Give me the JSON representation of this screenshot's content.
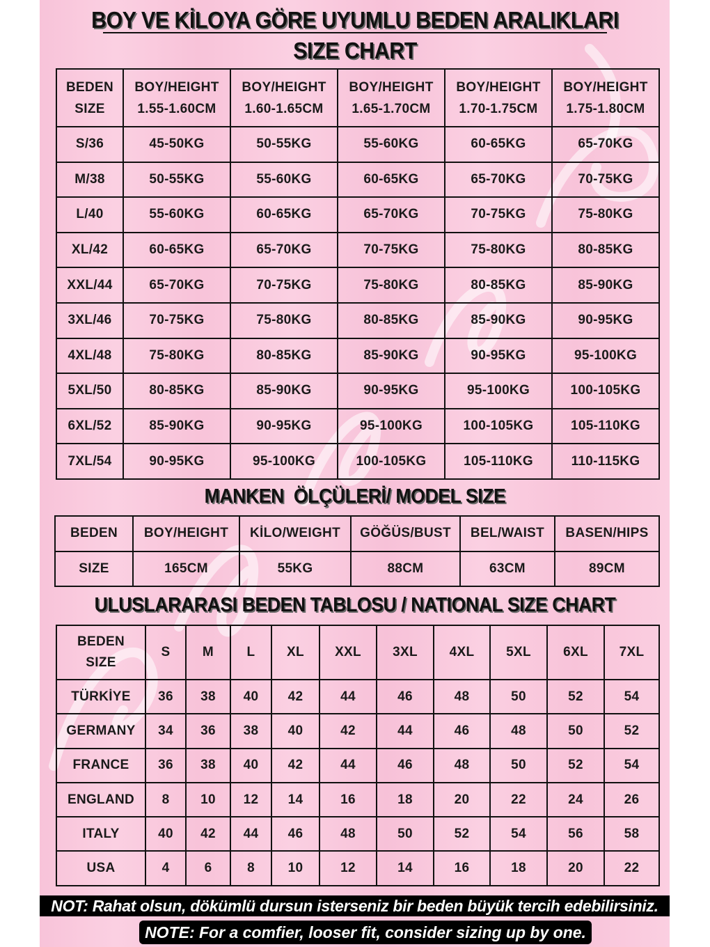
{
  "title": "BOY VE KİLOYA GÖRE UYUMLU BEDEN ARALIKLARI",
  "subtitle": "SIZE CHART",
  "size_chart": {
    "header": [
      [
        "BEDEN",
        "SIZE"
      ],
      [
        "BOY/HEIGHT",
        "1.55-1.60CM"
      ],
      [
        "BOY/HEIGHT",
        "1.60-1.65CM"
      ],
      [
        "BOY/HEIGHT",
        "1.65-1.70CM"
      ],
      [
        "BOY/HEIGHT",
        "1.70-1.75CM"
      ],
      [
        "BOY/HEIGHT",
        "1.75-1.80CM"
      ]
    ],
    "rows": [
      [
        "S/36",
        "45-50KG",
        "50-55KG",
        "55-60KG",
        "60-65KG",
        "65-70KG"
      ],
      [
        "M/38",
        "50-55KG",
        "55-60KG",
        "60-65KG",
        "65-70KG",
        "70-75KG"
      ],
      [
        "L/40",
        "55-60KG",
        "60-65KG",
        "65-70KG",
        "70-75KG",
        "75-80KG"
      ],
      [
        "XL/42",
        "60-65KG",
        "65-70KG",
        "70-75KG",
        "75-80KG",
        "80-85KG"
      ],
      [
        "XXL/44",
        "65-70KG",
        "70-75KG",
        "75-80KG",
        "80-85KG",
        "85-90KG"
      ],
      [
        "3XL/46",
        "70-75KG",
        "75-80KG",
        "80-85KG",
        "85-90KG",
        "90-95KG"
      ],
      [
        "4XL/48",
        "75-80KG",
        "80-85KG",
        "85-90KG",
        "90-95KG",
        "95-100KG"
      ],
      [
        "5XL/50",
        "80-85KG",
        "85-90KG",
        "90-95KG",
        "95-100KG",
        "100-105KG"
      ],
      [
        "6XL/52",
        "85-90KG",
        "90-95KG",
        "95-100KG",
        "100-105KG",
        "105-110KG"
      ],
      [
        "7XL/54",
        "90-95KG",
        "95-100KG",
        "100-105KG",
        "105-110KG",
        "110-115KG"
      ]
    ]
  },
  "model_title": "MANKEN  ÖLÇÜLERİ/ MODEL SIZE",
  "model": {
    "header": [
      "BEDEN",
      "BOY/HEIGHT",
      "KİLO/WEIGHT",
      "GÖĞÜS/BUST",
      "BEL/WAIST",
      "BASEN/HIPS"
    ],
    "values": [
      "SIZE",
      "165CM",
      "55KG",
      "88CM",
      "63CM",
      "89CM"
    ]
  },
  "national_title": "ULUSLARARASI BEDEN TABLOSU / NATIONAL SIZE CHART",
  "national": {
    "header_label": [
      "BEDEN",
      "SIZE"
    ],
    "sizes": [
      "S",
      "M",
      "L",
      "XL",
      "XXL",
      "3XL",
      "4XL",
      "5XL",
      "6XL",
      "7XL"
    ],
    "rows": [
      [
        "TÜRKİYE",
        "36",
        "38",
        "40",
        "42",
        "44",
        "46",
        "48",
        "50",
        "52",
        "54"
      ],
      [
        "GERMANY",
        "34",
        "36",
        "38",
        "40",
        "42",
        "44",
        "46",
        "48",
        "50",
        "52"
      ],
      [
        "FRANCE",
        "36",
        "38",
        "40",
        "42",
        "44",
        "46",
        "48",
        "50",
        "52",
        "54"
      ],
      [
        "ENGLAND",
        "8",
        "10",
        "12",
        "14",
        "16",
        "18",
        "20",
        "22",
        "24",
        "26"
      ],
      [
        "ITALY",
        "40",
        "42",
        "44",
        "46",
        "48",
        "50",
        "52",
        "54",
        "56",
        "58"
      ],
      [
        "USA",
        "4",
        "6",
        "8",
        "10",
        "12",
        "14",
        "16",
        "18",
        "20",
        "22"
      ]
    ]
  },
  "note_tr": "NOT: Rahat olsun, dökümlü dursun isterseniz bir beden büyük tercih edebilirsiniz.",
  "note_en": "NOTE: For a comfier, looser fit, consider sizing up by one.",
  "colors": {
    "background": "#f8c3d9",
    "border": "#111111",
    "note_bg": "#000000"
  }
}
